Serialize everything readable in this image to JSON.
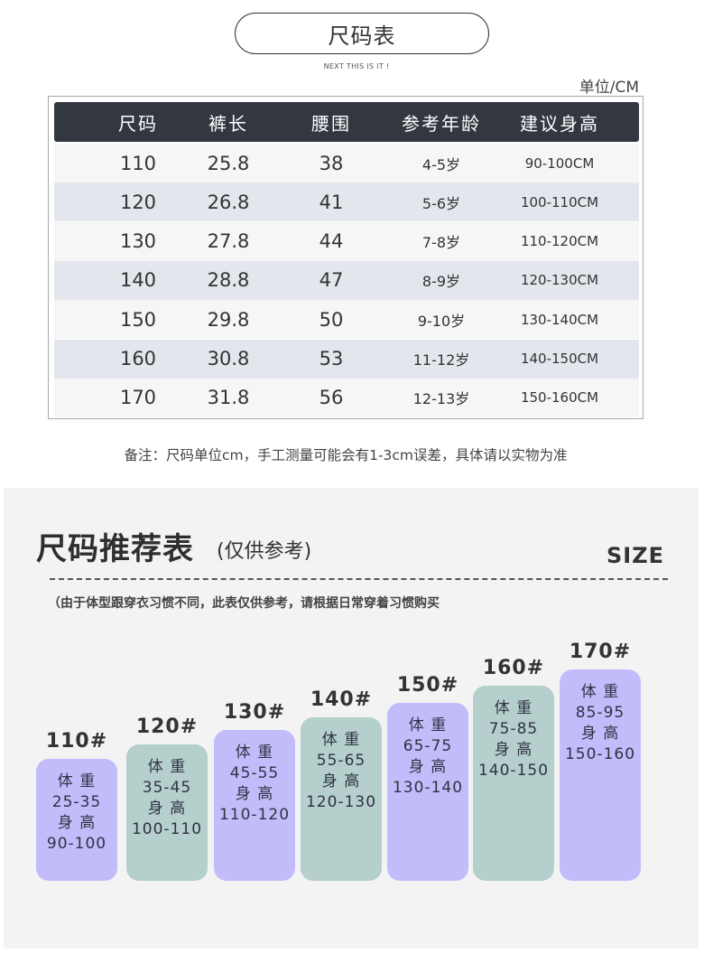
{
  "header": {
    "title": "尺码表",
    "subtitle": "NEXT THIS IS IT !",
    "unit": "单位/CM"
  },
  "table": {
    "columns": [
      "尺码",
      "裤长",
      "腰围",
      "参考年龄",
      "建议身高"
    ],
    "rows": [
      [
        "110",
        "25.8",
        "38",
        "4-5岁",
        "90-100CM"
      ],
      [
        "120",
        "26.8",
        "41",
        "5-6岁",
        "100-110CM"
      ],
      [
        "130",
        "27.8",
        "44",
        "7-8岁",
        "110-120CM"
      ],
      [
        "140",
        "28.8",
        "47",
        "8-9岁",
        "120-130CM"
      ],
      [
        "150",
        "29.8",
        "50",
        "9-10岁",
        "130-140CM"
      ],
      [
        "160",
        "30.8",
        "53",
        "11-12岁",
        "140-150CM"
      ],
      [
        "170",
        "31.8",
        "56",
        "12-13岁",
        "150-160CM"
      ]
    ]
  },
  "note": "备注：尺码单位cm，手工测量可能会有1-3cm误差，具体请以实物为准",
  "recommend": {
    "title": "尺码推荐表",
    "subtitle": "(仅供参考)",
    "size_label": "SIZE",
    "note": "（由于体型跟穿衣习惯不同，此表仅供参考，请根据日常穿着习惯购买",
    "weight_label": "体 重",
    "height_label": "身 高",
    "colors": {
      "purple": "#c2bcfb",
      "teal": "#b4cfcc"
    },
    "bars": [
      {
        "size": "110#",
        "weight": "25-35",
        "height": "90-100"
      },
      {
        "size": "120#",
        "weight": "35-45",
        "height": "100-110"
      },
      {
        "size": "130#",
        "weight": "45-55",
        "height": "110-120"
      },
      {
        "size": "140#",
        "weight": "55-65",
        "height": "120-130"
      },
      {
        "size": "150#",
        "weight": "65-75",
        "height": "130-140"
      },
      {
        "size": "160#",
        "weight": "75-85",
        "height": "140-150"
      },
      {
        "size": "170#",
        "weight": "85-95",
        "height": "150-160"
      }
    ]
  }
}
